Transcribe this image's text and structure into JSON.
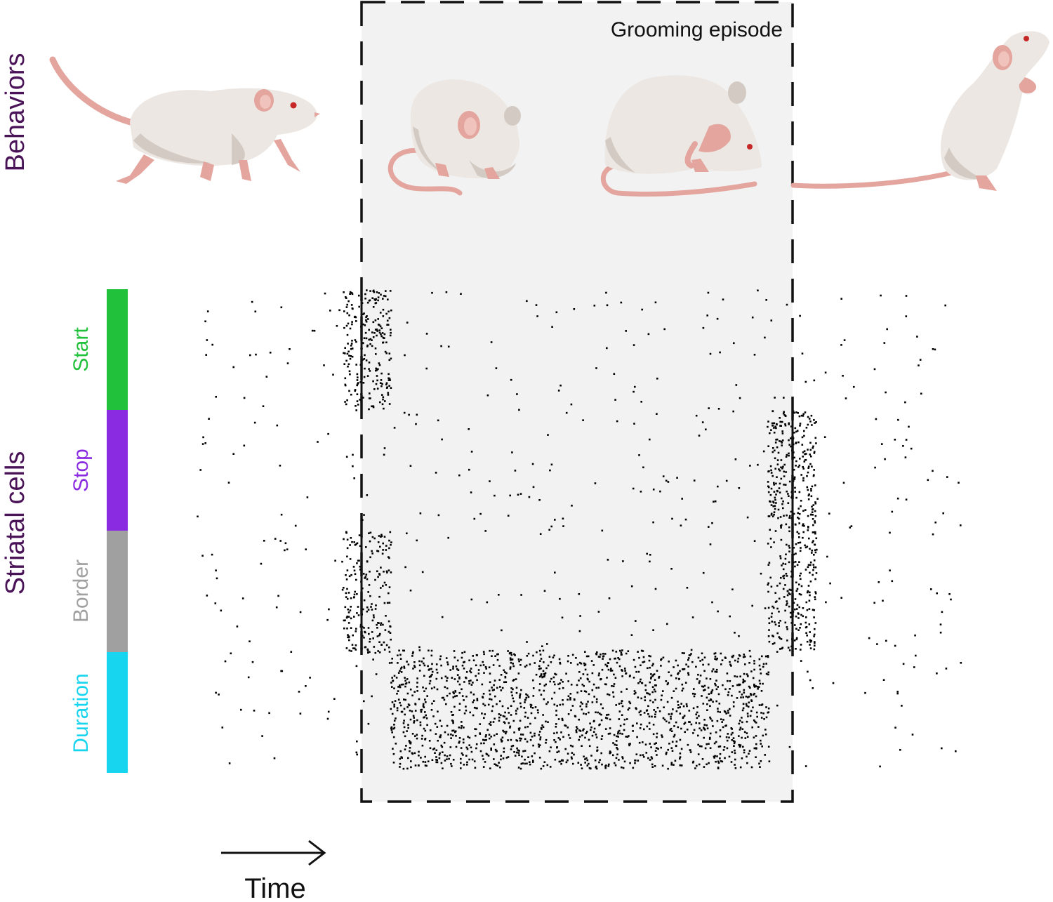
{
  "labels": {
    "behaviors": "Behaviors",
    "striatal_cells": "Striatal cells",
    "grooming_episode": "Grooming episode",
    "time": "Time"
  },
  "cell_groups": [
    {
      "name": "Start",
      "color": "#22c13c"
    },
    {
      "name": "Stop",
      "color": "#8a2be2"
    },
    {
      "name": "Border",
      "color": "#a0a0a0"
    },
    {
      "name": "Duration",
      "color": "#17d4ef"
    }
  ],
  "behavior_icons": [
    "walking-mouse-icon",
    "grooming-mouse-icon",
    "face-grooming-mouse-icon",
    "rearing-mouse-icon"
  ],
  "colors": {
    "heading_text": "#4a1358",
    "episode_fill": "#f2f2f2",
    "episode_border": "#111111",
    "spike": "#000000",
    "mouse_body": "#ece7e2",
    "mouse_shade": "#d3cbc3",
    "mouse_pink": "#e3a59d",
    "mouse_eye": "#c62828"
  }
}
